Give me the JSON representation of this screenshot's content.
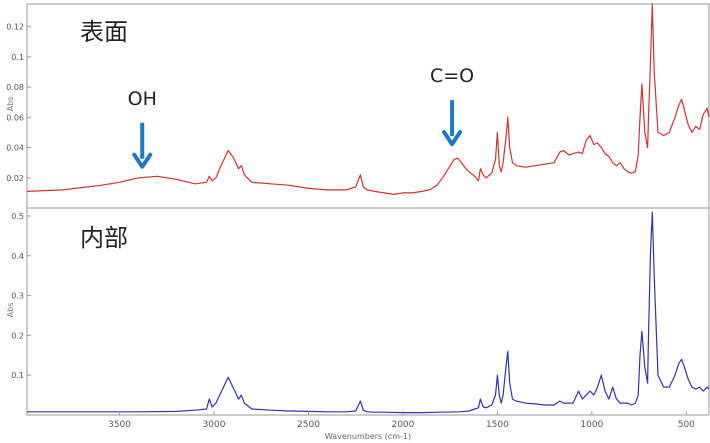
{
  "chart_data": [
    {
      "type": "line",
      "panel_label": "表面",
      "ylabel": "Abs",
      "ylim": [
        0,
        0.135
      ],
      "yticks": [
        0.02,
        0.04,
        0.06,
        0.08,
        0.1,
        0.12
      ],
      "xlim": [
        3990,
        380
      ],
      "color": "#cc3333",
      "annotations": [
        {
          "text": "OH",
          "x": 3380,
          "arrow_tip_y": 0.022
        },
        {
          "text": "C=O",
          "x": 1740,
          "arrow_tip_y": 0.037
        }
      ],
      "series": [
        {
          "x": [
            3990,
            3800,
            3600,
            3500,
            3400,
            3300,
            3200,
            3100,
            3040,
            3025,
            3010,
            2990,
            2960,
            2925,
            2900,
            2870,
            2855,
            2840,
            2800,
            2700,
            2600,
            2500,
            2400,
            2300,
            2250,
            2225,
            2210,
            2190,
            2150,
            2100,
            2050,
            2000,
            1950,
            1900,
            1860,
            1820,
            1790,
            1760,
            1730,
            1710,
            1690,
            1660,
            1620,
            1600,
            1590,
            1575,
            1560,
            1530,
            1510,
            1500,
            1490,
            1480,
            1470,
            1455,
            1445,
            1435,
            1420,
            1400,
            1350,
            1300,
            1250,
            1200,
            1170,
            1150,
            1120,
            1100,
            1070,
            1050,
            1030,
            1010,
            990,
            970,
            950,
            930,
            910,
            890,
            870,
            850,
            830,
            810,
            790,
            770,
            755,
            745,
            735,
            720,
            705,
            700,
            690,
            680,
            670,
            650,
            620,
            590,
            560,
            540,
            525,
            510,
            490,
            470,
            450,
            430,
            410,
            390,
            380
          ],
          "y": [
            0.011,
            0.012,
            0.015,
            0.017,
            0.02,
            0.021,
            0.019,
            0.016,
            0.017,
            0.021,
            0.018,
            0.02,
            0.029,
            0.038,
            0.034,
            0.026,
            0.028,
            0.022,
            0.017,
            0.016,
            0.015,
            0.013,
            0.012,
            0.012,
            0.014,
            0.022,
            0.014,
            0.012,
            0.011,
            0.01,
            0.009,
            0.01,
            0.01,
            0.011,
            0.012,
            0.015,
            0.02,
            0.026,
            0.032,
            0.033,
            0.03,
            0.025,
            0.021,
            0.018,
            0.026,
            0.022,
            0.02,
            0.023,
            0.032,
            0.05,
            0.028,
            0.024,
            0.03,
            0.046,
            0.06,
            0.04,
            0.03,
            0.028,
            0.027,
            0.028,
            0.029,
            0.03,
            0.037,
            0.038,
            0.035,
            0.036,
            0.037,
            0.036,
            0.045,
            0.048,
            0.042,
            0.043,
            0.04,
            0.036,
            0.034,
            0.03,
            0.028,
            0.03,
            0.026,
            0.024,
            0.023,
            0.024,
            0.035,
            0.06,
            0.082,
            0.05,
            0.04,
            0.06,
            0.095,
            0.135,
            0.09,
            0.05,
            0.048,
            0.05,
            0.06,
            0.068,
            0.072,
            0.065,
            0.055,
            0.05,
            0.054,
            0.052,
            0.062,
            0.066,
            0.06
          ]
        }
      ]
    },
    {
      "type": "line",
      "panel_label": "内部",
      "ylabel": "Abs",
      "xlabel": "Wavenumbers (cm-1)",
      "ylim": [
        0,
        0.52
      ],
      "yticks": [
        0.1,
        0.2,
        0.3,
        0.4,
        0.5
      ],
      "xlim": [
        3990,
        380
      ],
      "xticks": [
        3500,
        3000,
        2500,
        2000,
        1500,
        1000,
        500
      ],
      "color": "#3333aa",
      "series": [
        {
          "x": [
            3990,
            3800,
            3600,
            3400,
            3200,
            3100,
            3040,
            3025,
            3010,
            2990,
            2960,
            2925,
            2900,
            2870,
            2855,
            2840,
            2800,
            2700,
            2600,
            2500,
            2400,
            2300,
            2250,
            2225,
            2210,
            2190,
            2150,
            2100,
            2000,
            1900,
            1800,
            1700,
            1650,
            1620,
            1600,
            1590,
            1575,
            1560,
            1530,
            1510,
            1500,
            1490,
            1480,
            1470,
            1455,
            1445,
            1435,
            1420,
            1400,
            1350,
            1300,
            1250,
            1200,
            1170,
            1150,
            1100,
            1070,
            1050,
            1030,
            1010,
            990,
            970,
            950,
            930,
            910,
            890,
            870,
            850,
            830,
            810,
            790,
            770,
            755,
            745,
            735,
            720,
            705,
            700,
            690,
            680,
            670,
            650,
            620,
            590,
            560,
            540,
            525,
            510,
            490,
            470,
            450,
            430,
            410,
            390,
            380
          ],
          "y": [
            0.008,
            0.008,
            0.008,
            0.008,
            0.009,
            0.012,
            0.015,
            0.04,
            0.02,
            0.03,
            0.06,
            0.095,
            0.07,
            0.04,
            0.05,
            0.03,
            0.015,
            0.012,
            0.01,
            0.009,
            0.008,
            0.008,
            0.01,
            0.035,
            0.012,
            0.008,
            0.007,
            0.007,
            0.006,
            0.006,
            0.007,
            0.008,
            0.01,
            0.015,
            0.018,
            0.04,
            0.02,
            0.018,
            0.025,
            0.05,
            0.1,
            0.05,
            0.03,
            0.05,
            0.12,
            0.16,
            0.08,
            0.04,
            0.035,
            0.03,
            0.028,
            0.025,
            0.025,
            0.035,
            0.03,
            0.03,
            0.06,
            0.04,
            0.05,
            0.06,
            0.05,
            0.07,
            0.1,
            0.06,
            0.04,
            0.07,
            0.04,
            0.03,
            0.03,
            0.03,
            0.025,
            0.03,
            0.05,
            0.15,
            0.21,
            0.12,
            0.08,
            0.2,
            0.4,
            0.51,
            0.35,
            0.1,
            0.07,
            0.07,
            0.1,
            0.13,
            0.14,
            0.12,
            0.09,
            0.07,
            0.065,
            0.07,
            0.06,
            0.07,
            0.065
          ]
        }
      ]
    }
  ]
}
